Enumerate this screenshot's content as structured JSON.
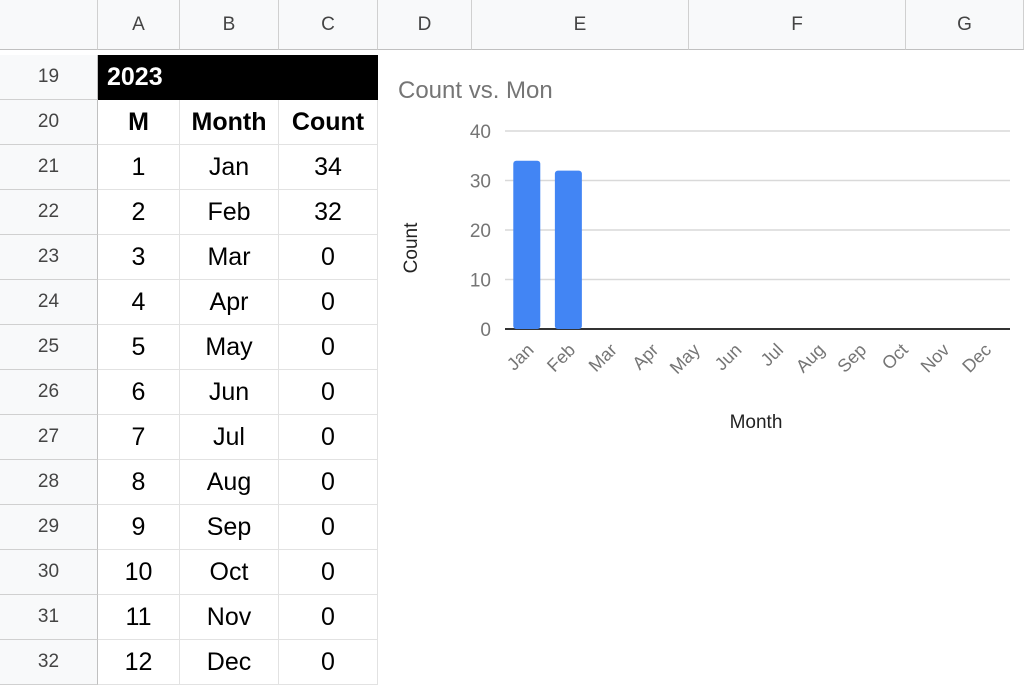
{
  "columns": [
    "A",
    "B",
    "C",
    "D",
    "E",
    "F",
    "G"
  ],
  "rows": [
    "19",
    "20",
    "21",
    "22",
    "23",
    "24",
    "25",
    "26",
    "27",
    "28",
    "29",
    "30",
    "31",
    "32"
  ],
  "year": "2023",
  "table": {
    "headers": [
      "M",
      "Month",
      "Count"
    ],
    "rows": [
      [
        "1",
        "Jan",
        "34"
      ],
      [
        "2",
        "Feb",
        "32"
      ],
      [
        "3",
        "Mar",
        "0"
      ],
      [
        "4",
        "Apr",
        "0"
      ],
      [
        "5",
        "May",
        "0"
      ],
      [
        "6",
        "Jun",
        "0"
      ],
      [
        "7",
        "Jul",
        "0"
      ],
      [
        "8",
        "Aug",
        "0"
      ],
      [
        "9",
        "Sep",
        "0"
      ],
      [
        "10",
        "Oct",
        "0"
      ],
      [
        "11",
        "Nov",
        "0"
      ],
      [
        "12",
        "Dec",
        "0"
      ]
    ]
  },
  "chart_data": {
    "type": "bar",
    "title": "Count vs. Mon",
    "xlabel": "Month",
    "ylabel": "Count",
    "categories": [
      "Jan",
      "Feb",
      "Mar",
      "Apr",
      "May",
      "Jun",
      "Jul",
      "Aug",
      "Sep",
      "Oct",
      "Nov",
      "Dec"
    ],
    "values": [
      34,
      32,
      0,
      0,
      0,
      0,
      0,
      0,
      0,
      0,
      0,
      0
    ],
    "ylim": [
      0,
      40
    ],
    "yticks": [
      "0",
      "10",
      "20",
      "30",
      "40"
    ],
    "grid": true,
    "bar_color": "#4285f4"
  }
}
